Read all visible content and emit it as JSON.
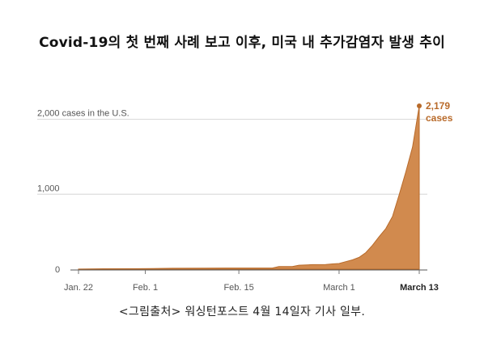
{
  "title": "Covid-19의 첫 번째 사례 보고 이후, 미국 내 추가감염자 발생 추이",
  "caption": "<그림출처> 워싱턴포스트 4월 14일자 기사 일부.",
  "colors": {
    "area_fill": "#d18a4e",
    "area_stroke": "#b86a2a",
    "annotation": "#b86a2a",
    "gridline": "#d6d6d6"
  },
  "chart_data": {
    "type": "area",
    "title": "",
    "xlabel": "",
    "ylabel": "",
    "grid": true,
    "ylim": [
      0,
      2179
    ],
    "y_tick_labels": [
      {
        "value": 0,
        "label": "0"
      },
      {
        "value": 1000,
        "label": "1,000"
      },
      {
        "value": 2000,
        "label": "2,000 cases in the U.S."
      }
    ],
    "x_tick_labels": [
      {
        "label": "Jan. 22",
        "date": "2020-01-22"
      },
      {
        "label": "Feb. 1",
        "date": "2020-02-01"
      },
      {
        "label": "Feb. 15",
        "date": "2020-02-15"
      },
      {
        "label": "March 1",
        "date": "2020-03-01"
      },
      {
        "label": "March 13",
        "date": "2020-03-13",
        "bold": true
      }
    ],
    "series": [
      {
        "points": [
          {
            "date": "2020-01-22",
            "value": 1
          },
          {
            "date": "2020-01-26",
            "value": 5
          },
          {
            "date": "2020-01-31",
            "value": 7
          },
          {
            "date": "2020-02-02",
            "value": 9
          },
          {
            "date": "2020-02-05",
            "value": 12
          },
          {
            "date": "2020-02-10",
            "value": 13
          },
          {
            "date": "2020-02-13",
            "value": 15
          },
          {
            "date": "2020-02-20",
            "value": 15
          },
          {
            "date": "2020-02-21",
            "value": 35
          },
          {
            "date": "2020-02-23",
            "value": 35
          },
          {
            "date": "2020-02-24",
            "value": 53
          },
          {
            "date": "2020-02-26",
            "value": 60
          },
          {
            "date": "2020-02-28",
            "value": 62
          },
          {
            "date": "2020-02-29",
            "value": 70
          },
          {
            "date": "2020-03-01",
            "value": 75
          },
          {
            "date": "2020-03-02",
            "value": 100
          },
          {
            "date": "2020-03-03",
            "value": 124
          },
          {
            "date": "2020-03-04",
            "value": 158
          },
          {
            "date": "2020-03-05",
            "value": 221
          },
          {
            "date": "2020-03-06",
            "value": 319
          },
          {
            "date": "2020-03-07",
            "value": 435
          },
          {
            "date": "2020-03-08",
            "value": 541
          },
          {
            "date": "2020-03-09",
            "value": 704
          },
          {
            "date": "2020-03-10",
            "value": 994
          },
          {
            "date": "2020-03-11",
            "value": 1301
          },
          {
            "date": "2020-03-12",
            "value": 1630
          },
          {
            "date": "2020-03-13",
            "value": 2179
          }
        ]
      }
    ],
    "annotation": {
      "value_label": "2,179",
      "unit_label": "cases",
      "date": "2020-03-13"
    }
  }
}
